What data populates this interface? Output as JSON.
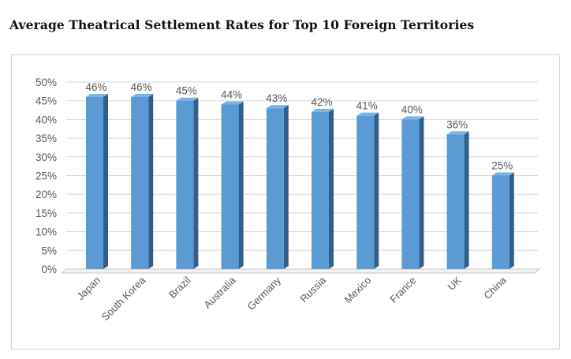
{
  "chart_data": {
    "type": "bar",
    "title": "Average Theatrical Settlement Rates for Top 10 Foreign Territories",
    "categories": [
      "Japan",
      "South Korea",
      "Brazil",
      "Australia",
      "Germany",
      "Russia",
      "Mexico",
      "France",
      "UK",
      "China"
    ],
    "values": [
      46,
      46,
      45,
      44,
      43,
      42,
      41,
      40,
      36,
      25
    ],
    "value_labels": [
      "46%",
      "46%",
      "45%",
      "44%",
      "43%",
      "42%",
      "41%",
      "40%",
      "36%",
      "25%"
    ],
    "yticks": [
      "0%",
      "5%",
      "10%",
      "15%",
      "20%",
      "25%",
      "30%",
      "35%",
      "40%",
      "45%",
      "50%"
    ],
    "ylim": [
      0,
      50
    ],
    "xlabel": "",
    "ylabel": "",
    "grid": true,
    "legend": "none",
    "colors": {
      "bar_front": "#5b9bd5",
      "bar_side": "#2f5f8f",
      "bar_top": "#7fb2e0",
      "grid": "#d9d9d9",
      "floor": "#c8c8c8",
      "label": "#595959"
    }
  }
}
